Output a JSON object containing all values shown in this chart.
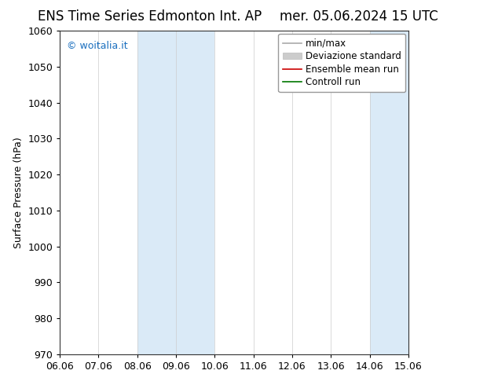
{
  "title_left": "ENS Time Series Edmonton Int. AP",
  "title_right": "mer. 05.06.2024 15 UTC",
  "ylabel": "Surface Pressure (hPa)",
  "ylim": [
    970,
    1060
  ],
  "yticks": [
    970,
    980,
    990,
    1000,
    1010,
    1020,
    1030,
    1040,
    1050,
    1060
  ],
  "xlabels": [
    "06.06",
    "07.06",
    "08.06",
    "09.06",
    "10.06",
    "11.06",
    "12.06",
    "13.06",
    "14.06",
    "15.06"
  ],
  "x_values": [
    0,
    1,
    2,
    3,
    4,
    5,
    6,
    7,
    8,
    9
  ],
  "shaded_bands": [
    {
      "xmin": 2,
      "xmax": 3,
      "color": "#daeaf7"
    },
    {
      "xmin": 3,
      "xmax": 4,
      "color": "#daeaf7"
    },
    {
      "xmin": 8,
      "xmax": 9,
      "color": "#daeaf7"
    },
    {
      "xmin": 9,
      "xmax": 9.5,
      "color": "#daeaf7"
    }
  ],
  "watermark": "© woitalia.it",
  "watermark_color": "#1a6fbf",
  "legend_items": [
    {
      "label": "min/max",
      "color": "#aaaaaa",
      "lw": 1.2,
      "ls": "-"
    },
    {
      "label": "Deviazione standard",
      "color": "#cccccc",
      "lw": 5,
      "ls": "-"
    },
    {
      "label": "Ensemble mean run",
      "color": "#cc0000",
      "lw": 1.2,
      "ls": "-"
    },
    {
      "label": "Controll run",
      "color": "#007700",
      "lw": 1.2,
      "ls": "-"
    }
  ],
  "bg_color": "#ffffff",
  "plot_bg_color": "#ffffff",
  "grid_color": "#cccccc",
  "border_color": "#333333",
  "title_fontsize": 12,
  "label_fontsize": 9,
  "tick_fontsize": 9,
  "legend_fontsize": 8.5
}
